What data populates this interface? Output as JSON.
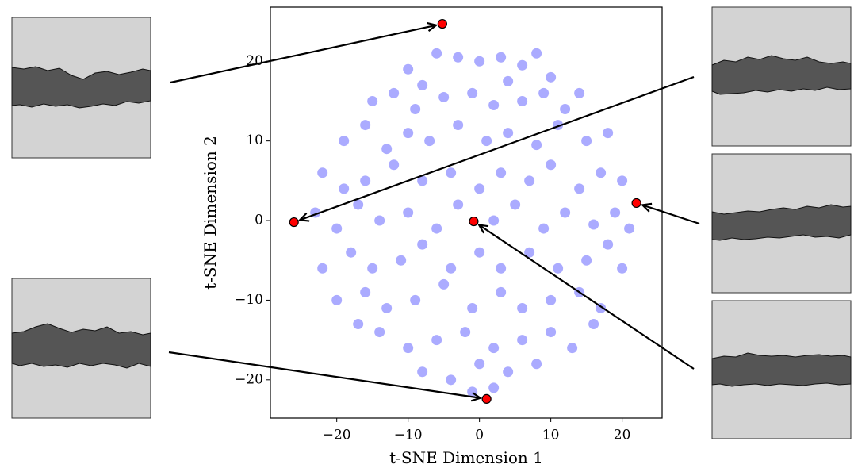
{
  "chart_data": {
    "type": "scatter",
    "xlabel": "t-SNE Dimension 1",
    "ylabel": "t-SNE Dimension 2",
    "xlim": [
      -29.3,
      25.6
    ],
    "ylim": [
      -24.8,
      26.8
    ],
    "xticks": [
      {
        "value": -20,
        "label": "−20"
      },
      {
        "value": -10,
        "label": "−10"
      },
      0,
      10,
      20
    ],
    "yticks": [
      {
        "value": -20,
        "label": "−20"
      },
      {
        "value": -10,
        "label": "−10"
      },
      0,
      10,
      20
    ],
    "series": [
      {
        "color": "#0000ff",
        "x": [
          -10,
          -6,
          -3,
          0,
          3,
          6,
          8,
          -8,
          4,
          10,
          -15,
          -12,
          -9,
          -5,
          -1,
          2,
          6,
          9,
          12,
          14,
          -19,
          -16,
          -13,
          -10,
          -7,
          -3,
          1,
          4,
          8,
          11,
          15,
          18,
          -22,
          -19,
          -16,
          -12,
          -8,
          -4,
          0,
          3,
          7,
          10,
          14,
          17,
          20,
          -23,
          -20,
          -17,
          -14,
          -10,
          -6,
          -3,
          2,
          5,
          9,
          12,
          16,
          19,
          21,
          -22,
          -18,
          -15,
          -11,
          -8,
          -4,
          0,
          3,
          7,
          11,
          15,
          18,
          20,
          -20,
          -16,
          -13,
          -9,
          -5,
          -1,
          3,
          6,
          10,
          14,
          17,
          -14,
          -10,
          -6,
          -2,
          2,
          6,
          10,
          13,
          -17,
          16,
          -8,
          -4,
          0,
          4,
          8,
          -1,
          2
        ],
        "values": [
          19,
          21,
          20.5,
          20,
          20.5,
          19.5,
          21,
          17,
          17.5,
          18,
          15,
          16,
          14,
          15.5,
          16,
          14.5,
          15,
          16,
          14,
          16,
          10,
          12,
          9,
          11,
          10,
          12,
          10,
          11,
          9.5,
          12,
          10,
          11,
          6,
          4,
          5,
          7,
          5,
          6,
          4,
          6,
          5,
          7,
          4,
          6,
          5,
          1,
          -1,
          2,
          0,
          1,
          -1,
          2,
          0,
          2,
          -1,
          1,
          -0.5,
          1,
          -1,
          -6,
          -4,
          -6,
          -5,
          -3,
          -6,
          -4,
          -6,
          -4,
          -6,
          -5,
          -3,
          -6,
          -10,
          -9,
          -11,
          -10,
          -8,
          -11,
          -9,
          -11,
          -10,
          -9,
          -11,
          -14,
          -16,
          -15,
          -14,
          -16,
          -15,
          -14,
          -16,
          -13,
          -13,
          -19,
          -20,
          -18,
          -19,
          -18,
          -21.5,
          -21
        ]
      },
      {
        "color": "#ff0000",
        "x": [
          -5.2,
          -26,
          -0.8,
          22,
          1
        ],
        "values": [
          24.7,
          -0.2,
          -0.1,
          2.2,
          -22.4
        ]
      }
    ]
  }
}
